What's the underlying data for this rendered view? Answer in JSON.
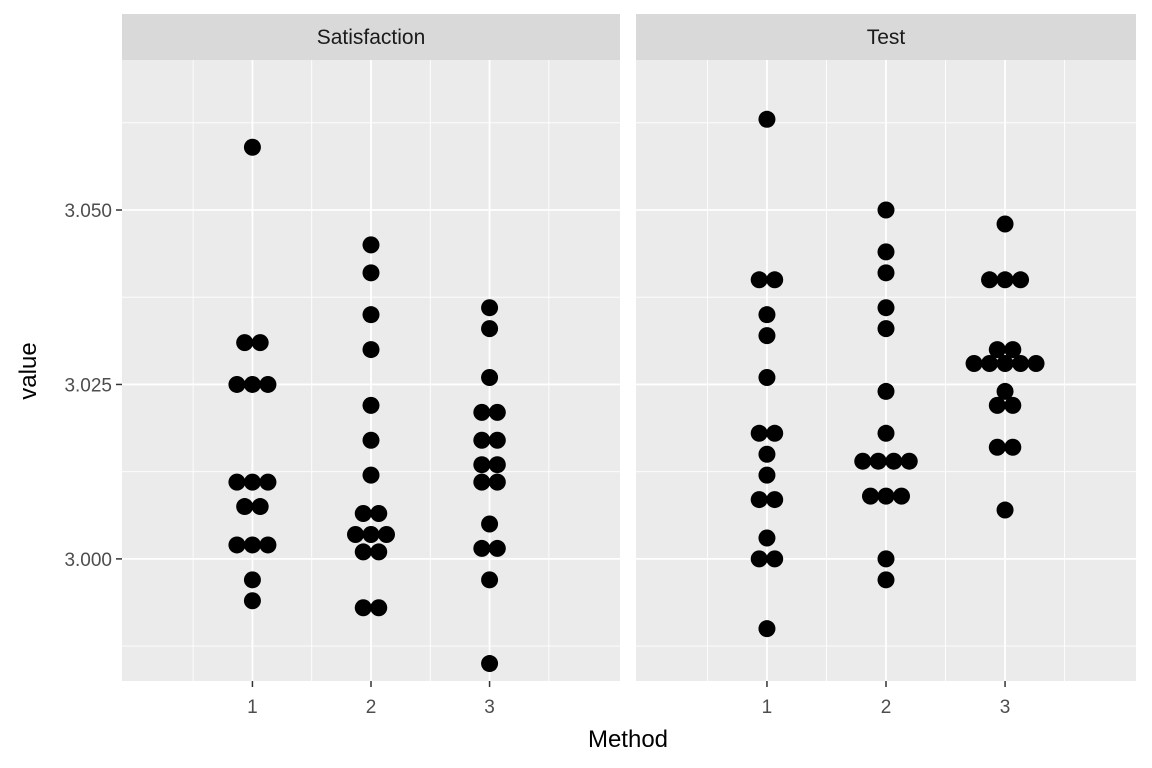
{
  "chart_data": {
    "type": "scatter",
    "subtype": "faceted dot plot",
    "xlabel": "Method",
    "ylabel": "value",
    "x_categories": [
      "1",
      "2",
      "3"
    ],
    "ylim": [
      2.9825,
      3.0715
    ],
    "y_ticks": [
      3.0,
      3.025,
      3.05
    ],
    "y_tick_labels": [
      "3.000",
      "3.025",
      "3.050"
    ],
    "grid": true,
    "panel_background": "#ebebeb",
    "strip_background": "#d9d9d9",
    "point_color": "#000000",
    "facets": [
      {
        "label": "Satisfaction",
        "groups": [
          {
            "x": "1",
            "values": [
              3.059,
              3.031,
              3.031,
              3.025,
              3.025,
              3.025,
              3.011,
              3.011,
              3.011,
              3.0075,
              3.0075,
              3.002,
              3.002,
              3.002,
              2.997,
              2.994
            ]
          },
          {
            "x": "2",
            "values": [
              3.045,
              3.041,
              3.035,
              3.03,
              3.022,
              3.017,
              3.012,
              3.0065,
              3.0065,
              3.0035,
              3.0035,
              3.0035,
              3.001,
              3.001,
              2.993,
              2.993
            ]
          },
          {
            "x": "3",
            "values": [
              3.036,
              3.033,
              3.026,
              3.021,
              3.021,
              3.017,
              3.017,
              3.0135,
              3.0135,
              3.011,
              3.011,
              3.005,
              3.0015,
              3.0015,
              2.997,
              2.985
            ]
          }
        ]
      },
      {
        "label": "Test",
        "groups": [
          {
            "x": "1",
            "values": [
              3.063,
              3.04,
              3.04,
              3.035,
              3.032,
              3.026,
              3.018,
              3.018,
              3.015,
              3.012,
              3.0085,
              3.0085,
              3.003,
              3.0,
              3.0,
              2.99
            ]
          },
          {
            "x": "2",
            "values": [
              3.05,
              3.044,
              3.041,
              3.036,
              3.033,
              3.024,
              3.018,
              3.014,
              3.014,
              3.014,
              3.014,
              3.009,
              3.009,
              3.009,
              3.0,
              2.997
            ]
          },
          {
            "x": "3",
            "values": [
              3.048,
              3.04,
              3.04,
              3.04,
              3.03,
              3.03,
              3.028,
              3.028,
              3.028,
              3.028,
              3.028,
              3.024,
              3.022,
              3.022,
              3.016,
              3.016,
              3.007
            ]
          }
        ]
      }
    ]
  }
}
